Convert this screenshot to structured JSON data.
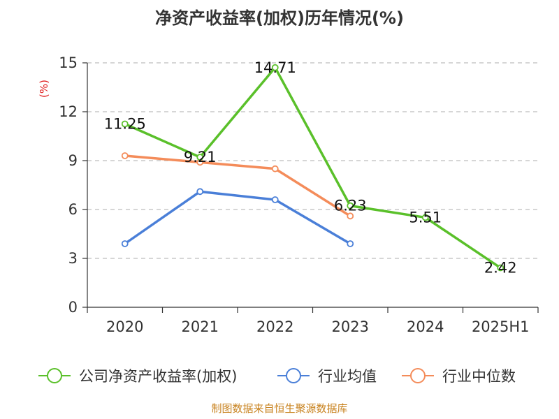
{
  "chart_data": {
    "type": "line",
    "title": "净资产收益率(加权)历年情况(%)",
    "unit_label": "(%)",
    "categories": [
      "2020",
      "2021",
      "2022",
      "2023",
      "2024",
      "2025H1"
    ],
    "ylim": [
      0,
      15
    ],
    "yticks": [
      "0",
      "3",
      "6",
      "9",
      "12",
      "15"
    ],
    "grid": true,
    "legend_position": "bottom",
    "series": [
      {
        "name": "公司净资产收益率(加权)",
        "color": "#5ac02a",
        "values": [
          11.25,
          9.21,
          14.71,
          6.23,
          5.51,
          2.42
        ],
        "labels": [
          "11.25",
          "9.21",
          "14.71",
          "6.23",
          "5.51",
          "2.42"
        ]
      },
      {
        "name": "行业均值",
        "color": "#4a7fd8",
        "values": [
          3.9,
          7.1,
          6.6,
          3.9,
          null,
          null
        ]
      },
      {
        "name": "行业中位数",
        "color": "#f48c5a",
        "values": [
          9.3,
          8.9,
          8.5,
          5.6,
          null,
          null
        ]
      }
    ],
    "source": "制图数据来自恒生聚源数据库"
  }
}
